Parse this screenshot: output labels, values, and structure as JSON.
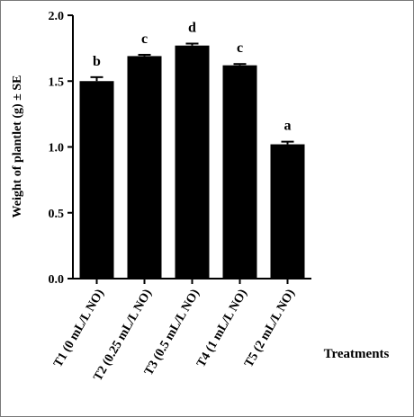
{
  "chart_data": {
    "type": "bar",
    "title": "",
    "xlabel": "Treatments",
    "ylabel": "Weight of plantlet (g)  ± SE",
    "ylim": [
      0,
      2.0
    ],
    "yticks": [
      "0.0",
      "0.5",
      "1.0",
      "1.5",
      "2.0"
    ],
    "categories": [
      "T1 (0 mL/L NO)",
      "T2 (0.25 mL/L NO)",
      "T3 (0.5 mL/L NO)",
      "T4 (1 mL/L NO)",
      "T5 (2 mL/L NO)"
    ],
    "values": [
      1.5,
      1.69,
      1.77,
      1.62,
      1.02
    ],
    "errors": [
      0.03,
      0.01,
      0.015,
      0.01,
      0.02
    ],
    "letters": [
      "b",
      "c",
      "d",
      "c",
      "a"
    ],
    "bar_color": "#000000",
    "grid": false,
    "legend": "none"
  }
}
